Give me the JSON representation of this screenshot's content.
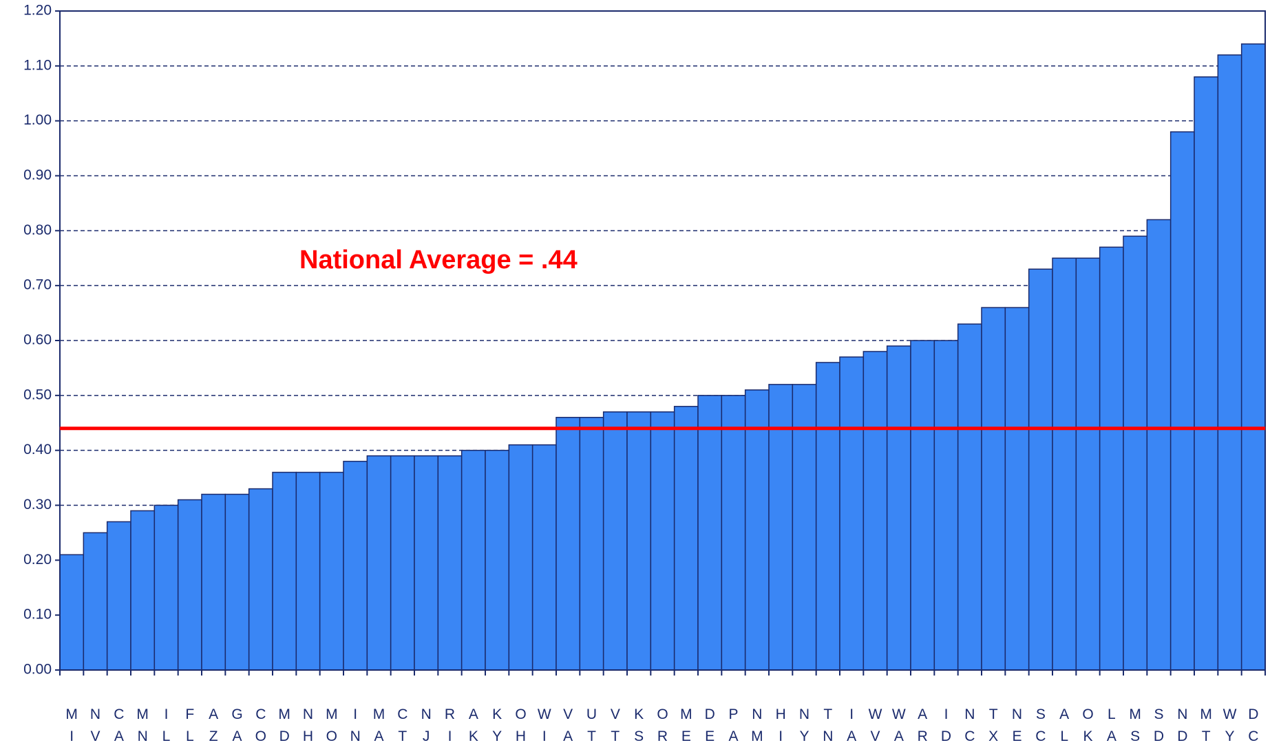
{
  "chart_data": {
    "type": "bar",
    "annotation": "National Average = .44",
    "average_line": 0.44,
    "average_color": "#ff0000",
    "categories": [
      "MI",
      "NV",
      "CA",
      "MN",
      "IL",
      "FL",
      "AZ",
      "GA",
      "CO",
      "MD",
      "NH",
      "MO",
      "IN",
      "MA",
      "CT",
      "NJ",
      "RI",
      "AK",
      "KY",
      "OH",
      "WI",
      "VA",
      "UT",
      "VT",
      "KS",
      "OR",
      "ME",
      "DE",
      "PA",
      "NM",
      "HI",
      "NY",
      "TN",
      "IA",
      "WV",
      "WA",
      "AR",
      "ID",
      "NC",
      "TX",
      "NE",
      "SC",
      "AL",
      "OK",
      "LA",
      "MS",
      "SD",
      "ND",
      "MT",
      "WY",
      "DC"
    ],
    "values": [
      0.21,
      0.25,
      0.27,
      0.29,
      0.3,
      0.31,
      0.32,
      0.32,
      0.33,
      0.36,
      0.36,
      0.36,
      0.38,
      0.39,
      0.39,
      0.39,
      0.39,
      0.4,
      0.4,
      0.41,
      0.41,
      0.46,
      0.46,
      0.47,
      0.47,
      0.47,
      0.48,
      0.5,
      0.5,
      0.51,
      0.52,
      0.52,
      0.56,
      0.57,
      0.58,
      0.59,
      0.6,
      0.6,
      0.63,
      0.66,
      0.66,
      0.73,
      0.75,
      0.75,
      0.77,
      0.79,
      0.82,
      0.98,
      1.08,
      1.12,
      1.14
    ],
    "color": "#3a86f5",
    "ylim": [
      0,
      1.2
    ],
    "yticks": [
      {
        "value": 0,
        "label": "0.00"
      },
      {
        "value": 0.1,
        "label": "0.10"
      },
      {
        "value": 0.2,
        "label": "0.20"
      },
      {
        "value": 0.3,
        "label": "0.30"
      },
      {
        "value": 0.4,
        "label": "0.40"
      },
      {
        "value": 0.5,
        "label": "0.50"
      },
      {
        "value": 0.6,
        "label": "0.60"
      },
      {
        "value": 0.7,
        "label": "0.70"
      },
      {
        "value": 0.8,
        "label": "0.80"
      },
      {
        "value": 0.9,
        "label": "0.90"
      },
      {
        "value": 1.0,
        "label": "1.00"
      },
      {
        "value": 1.1,
        "label": "1.10"
      },
      {
        "value": 1.2,
        "label": "1.20"
      }
    ],
    "grid": true
  }
}
